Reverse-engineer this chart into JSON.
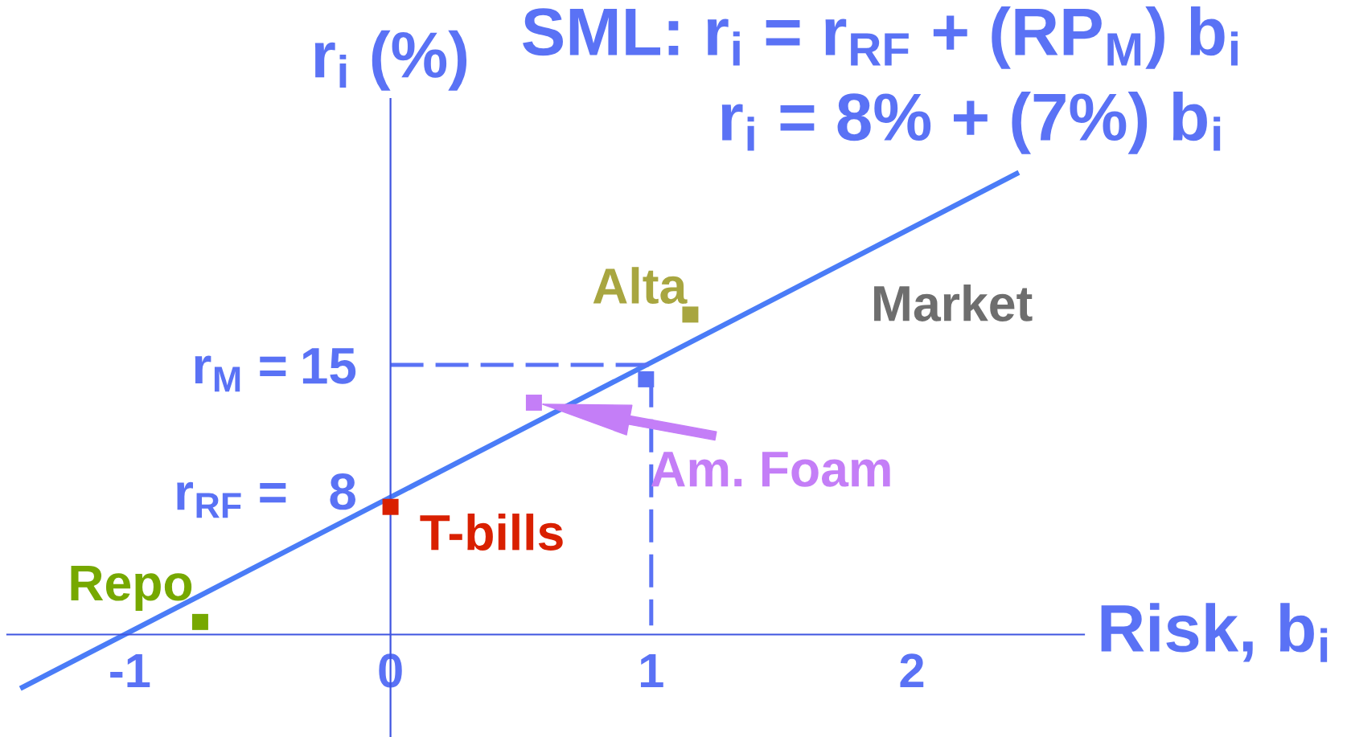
{
  "chart_data": {
    "type": "scatter",
    "title": "SML: r$_{i}$ = r$_{RF}$ + (RP$_{M}$) b$_{i}$",
    "subtitle": "r$_{i}$ = 8% + (7%) b$_{i}$",
    "xlabel": "Risk, b$_{i}$",
    "ylabel": "r$_{i}$ (%)",
    "xlim": [
      -1.47,
      2.66
    ],
    "ylim": [
      -5.7,
      29.8
    ],
    "xticks": [
      -1,
      0,
      1,
      2
    ],
    "yticks": [
      8,
      15
    ],
    "grid": false,
    "legend": false,
    "marker": "square",
    "series": [
      {
        "type": "line",
        "color": "#4a7cf7",
        "x": [
          -1.42,
          2.41
        ],
        "values": [
          -3.0,
          25.7
        ],
        "line_style": "solid",
        "marker": "none"
      },
      {
        "type": "line",
        "color": "#5a72f5",
        "x": [
          0,
          1,
          1
        ],
        "values": [
          15,
          15,
          0.5
        ],
        "line_style": "dashed",
        "marker": "none"
      },
      {
        "name": "Repo",
        "color": "#76a800",
        "x": [
          -0.73
        ],
        "values": [
          0.7
        ]
      },
      {
        "name": "T-bills",
        "color": "#d92000",
        "x": [
          0.0
        ],
        "values": [
          7.1
        ]
      },
      {
        "name": "Alta",
        "color": "#a8a640",
        "x": [
          1.15
        ],
        "values": [
          17.8
        ]
      },
      {
        "color": "#c47ef7",
        "x": [
          0.55
        ],
        "values": [
          12.9
        ]
      },
      {
        "color": "#5a72f5",
        "x": [
          0.98
        ],
        "values": [
          14.2
        ]
      }
    ],
    "annotations": [
      "Market",
      {
        "text": "Am. Foam",
        "x": 0.55,
        "y": 12.9
      },
      "r$_{M}$ =",
      "r$_{RF}$ ="
    ]
  }
}
